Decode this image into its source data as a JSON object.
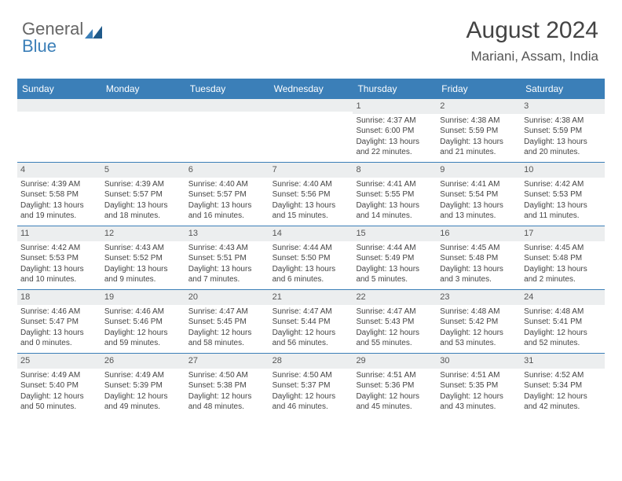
{
  "logo": {
    "part1": "General",
    "part2": "Blue"
  },
  "title": "August 2024",
  "subtitle": "Mariani, Assam, India",
  "colors": {
    "header_bg": "#3b7fb8",
    "header_text": "#ffffff",
    "daynum_bg": "#eceeef",
    "text": "#444444",
    "logo_gray": "#666666",
    "logo_blue": "#3b7fb8"
  },
  "days_of_week": [
    "Sunday",
    "Monday",
    "Tuesday",
    "Wednesday",
    "Thursday",
    "Friday",
    "Saturday"
  ],
  "weeks": [
    [
      {
        "n": "",
        "sr": "",
        "ss": "",
        "dl": ""
      },
      {
        "n": "",
        "sr": "",
        "ss": "",
        "dl": ""
      },
      {
        "n": "",
        "sr": "",
        "ss": "",
        "dl": ""
      },
      {
        "n": "",
        "sr": "",
        "ss": "",
        "dl": ""
      },
      {
        "n": "1",
        "sr": "Sunrise: 4:37 AM",
        "ss": "Sunset: 6:00 PM",
        "dl": "Daylight: 13 hours and 22 minutes."
      },
      {
        "n": "2",
        "sr": "Sunrise: 4:38 AM",
        "ss": "Sunset: 5:59 PM",
        "dl": "Daylight: 13 hours and 21 minutes."
      },
      {
        "n": "3",
        "sr": "Sunrise: 4:38 AM",
        "ss": "Sunset: 5:59 PM",
        "dl": "Daylight: 13 hours and 20 minutes."
      }
    ],
    [
      {
        "n": "4",
        "sr": "Sunrise: 4:39 AM",
        "ss": "Sunset: 5:58 PM",
        "dl": "Daylight: 13 hours and 19 minutes."
      },
      {
        "n": "5",
        "sr": "Sunrise: 4:39 AM",
        "ss": "Sunset: 5:57 PM",
        "dl": "Daylight: 13 hours and 18 minutes."
      },
      {
        "n": "6",
        "sr": "Sunrise: 4:40 AM",
        "ss": "Sunset: 5:57 PM",
        "dl": "Daylight: 13 hours and 16 minutes."
      },
      {
        "n": "7",
        "sr": "Sunrise: 4:40 AM",
        "ss": "Sunset: 5:56 PM",
        "dl": "Daylight: 13 hours and 15 minutes."
      },
      {
        "n": "8",
        "sr": "Sunrise: 4:41 AM",
        "ss": "Sunset: 5:55 PM",
        "dl": "Daylight: 13 hours and 14 minutes."
      },
      {
        "n": "9",
        "sr": "Sunrise: 4:41 AM",
        "ss": "Sunset: 5:54 PM",
        "dl": "Daylight: 13 hours and 13 minutes."
      },
      {
        "n": "10",
        "sr": "Sunrise: 4:42 AM",
        "ss": "Sunset: 5:53 PM",
        "dl": "Daylight: 13 hours and 11 minutes."
      }
    ],
    [
      {
        "n": "11",
        "sr": "Sunrise: 4:42 AM",
        "ss": "Sunset: 5:53 PM",
        "dl": "Daylight: 13 hours and 10 minutes."
      },
      {
        "n": "12",
        "sr": "Sunrise: 4:43 AM",
        "ss": "Sunset: 5:52 PM",
        "dl": "Daylight: 13 hours and 9 minutes."
      },
      {
        "n": "13",
        "sr": "Sunrise: 4:43 AM",
        "ss": "Sunset: 5:51 PM",
        "dl": "Daylight: 13 hours and 7 minutes."
      },
      {
        "n": "14",
        "sr": "Sunrise: 4:44 AM",
        "ss": "Sunset: 5:50 PM",
        "dl": "Daylight: 13 hours and 6 minutes."
      },
      {
        "n": "15",
        "sr": "Sunrise: 4:44 AM",
        "ss": "Sunset: 5:49 PM",
        "dl": "Daylight: 13 hours and 5 minutes."
      },
      {
        "n": "16",
        "sr": "Sunrise: 4:45 AM",
        "ss": "Sunset: 5:48 PM",
        "dl": "Daylight: 13 hours and 3 minutes."
      },
      {
        "n": "17",
        "sr": "Sunrise: 4:45 AM",
        "ss": "Sunset: 5:48 PM",
        "dl": "Daylight: 13 hours and 2 minutes."
      }
    ],
    [
      {
        "n": "18",
        "sr": "Sunrise: 4:46 AM",
        "ss": "Sunset: 5:47 PM",
        "dl": "Daylight: 13 hours and 0 minutes."
      },
      {
        "n": "19",
        "sr": "Sunrise: 4:46 AM",
        "ss": "Sunset: 5:46 PM",
        "dl": "Daylight: 12 hours and 59 minutes."
      },
      {
        "n": "20",
        "sr": "Sunrise: 4:47 AM",
        "ss": "Sunset: 5:45 PM",
        "dl": "Daylight: 12 hours and 58 minutes."
      },
      {
        "n": "21",
        "sr": "Sunrise: 4:47 AM",
        "ss": "Sunset: 5:44 PM",
        "dl": "Daylight: 12 hours and 56 minutes."
      },
      {
        "n": "22",
        "sr": "Sunrise: 4:47 AM",
        "ss": "Sunset: 5:43 PM",
        "dl": "Daylight: 12 hours and 55 minutes."
      },
      {
        "n": "23",
        "sr": "Sunrise: 4:48 AM",
        "ss": "Sunset: 5:42 PM",
        "dl": "Daylight: 12 hours and 53 minutes."
      },
      {
        "n": "24",
        "sr": "Sunrise: 4:48 AM",
        "ss": "Sunset: 5:41 PM",
        "dl": "Daylight: 12 hours and 52 minutes."
      }
    ],
    [
      {
        "n": "25",
        "sr": "Sunrise: 4:49 AM",
        "ss": "Sunset: 5:40 PM",
        "dl": "Daylight: 12 hours and 50 minutes."
      },
      {
        "n": "26",
        "sr": "Sunrise: 4:49 AM",
        "ss": "Sunset: 5:39 PM",
        "dl": "Daylight: 12 hours and 49 minutes."
      },
      {
        "n": "27",
        "sr": "Sunrise: 4:50 AM",
        "ss": "Sunset: 5:38 PM",
        "dl": "Daylight: 12 hours and 48 minutes."
      },
      {
        "n": "28",
        "sr": "Sunrise: 4:50 AM",
        "ss": "Sunset: 5:37 PM",
        "dl": "Daylight: 12 hours and 46 minutes."
      },
      {
        "n": "29",
        "sr": "Sunrise: 4:51 AM",
        "ss": "Sunset: 5:36 PM",
        "dl": "Daylight: 12 hours and 45 minutes."
      },
      {
        "n": "30",
        "sr": "Sunrise: 4:51 AM",
        "ss": "Sunset: 5:35 PM",
        "dl": "Daylight: 12 hours and 43 minutes."
      },
      {
        "n": "31",
        "sr": "Sunrise: 4:52 AM",
        "ss": "Sunset: 5:34 PM",
        "dl": "Daylight: 12 hours and 42 minutes."
      }
    ]
  ]
}
